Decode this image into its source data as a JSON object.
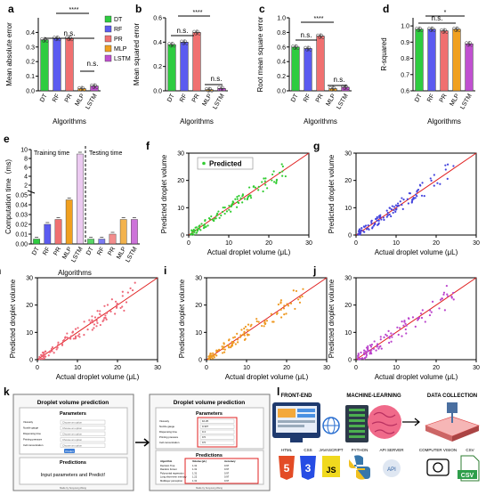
{
  "colors": {
    "DT": "#2ecc40",
    "RF": "#5b5bf0",
    "PR": "#f07070",
    "MLP": "#f0a020",
    "LSTM": "#c050d0",
    "diag": "#e02020",
    "scatter_f": "#33cc33",
    "scatter_g": "#4444dd",
    "scatter_h": "#ee6677",
    "scatter_i": "#ee9922",
    "scatter_j": "#bb44cc"
  },
  "panels": {
    "a": {
      "label": "a",
      "ylabel": "Mean absolute error",
      "xlabel": "Algorithms",
      "sig1": "****",
      "ns1": "n.s.",
      "ns2": "n.s."
    },
    "b": {
      "label": "b",
      "ylabel": "Mean squared error",
      "xlabel": "Algorithms",
      "sig1": "****",
      "ns1": "n.s.",
      "ns2": "n.s."
    },
    "c": {
      "label": "c",
      "ylabel": "Root mean square error",
      "xlabel": "Algorithms",
      "sig1": "****",
      "ns1": "n.s.",
      "ns2": "n.s."
    },
    "d": {
      "label": "d",
      "ylabel": "R-squared",
      "xlabel": "Algorithms",
      "sig1": "*",
      "ns1": "n.s."
    },
    "e": {
      "label": "e",
      "ylabel": "Computation time（ms)",
      "xlabel": "Algorithms",
      "train": "Training time",
      "test": "Testing time"
    },
    "f": {
      "label": "f",
      "legend": "Predicted"
    },
    "g": {
      "label": "g"
    },
    "h": {
      "label": "h"
    },
    "i": {
      "label": "i"
    },
    "j": {
      "label": "j"
    },
    "k": {
      "label": "k"
    },
    "l": {
      "label": "l"
    }
  },
  "scatter_axes": {
    "xlabel": "Actual droplet volume (μL)",
    "ylabel": "Predicted droplet volume"
  },
  "chart_data": [
    {
      "id": "a",
      "type": "bar",
      "categories": [
        "DT",
        "RF",
        "PR",
        "MLP",
        "LSTM"
      ],
      "values": [
        0.35,
        0.36,
        0.36,
        0.015,
        0.033
      ],
      "ylim": [
        0,
        0.5
      ],
      "yticks": [
        0,
        0.1,
        0.2,
        0.3,
        0.4
      ],
      "legend": [
        "DT",
        "RF",
        "PR",
        "MLP",
        "LSTM"
      ]
    },
    {
      "id": "b",
      "type": "bar",
      "categories": [
        "DT",
        "RF",
        "PR",
        "MLP",
        "LSTM"
      ],
      "values": [
        0.38,
        0.4,
        0.48,
        0.01,
        0.02
      ],
      "ylim": [
        0,
        0.6
      ],
      "yticks": [
        0,
        0.2,
        0.4,
        0.6
      ]
    },
    {
      "id": "c",
      "type": "bar",
      "categories": [
        "DT",
        "RF",
        "PR",
        "MLP",
        "LSTM"
      ],
      "values": [
        0.6,
        0.58,
        0.75,
        0.03,
        0.05
      ],
      "ylim": [
        0,
        1.0
      ],
      "yticks": [
        0,
        0.2,
        0.4,
        0.6,
        0.8,
        1.0
      ]
    },
    {
      "id": "d",
      "type": "bar",
      "categories": [
        "DT",
        "RF",
        "PR",
        "MLP",
        "LSTM"
      ],
      "values": [
        0.98,
        0.98,
        0.97,
        0.98,
        0.89
      ],
      "ylim": [
        0.6,
        1.05
      ],
      "yticks": [
        0.6,
        0.7,
        0.8,
        0.9,
        1.0
      ]
    },
    {
      "id": "e",
      "type": "bar",
      "categories": [
        "DT",
        "RF",
        "PR",
        "MLP",
        "LSTM"
      ],
      "series": [
        {
          "name": "Training time",
          "values": [
            0.005,
            0.02,
            0.025,
            0.045,
            9.0
          ]
        },
        {
          "name": "Testing time",
          "values": [
            0.005,
            0.005,
            0.01,
            0.025,
            0.025
          ]
        }
      ],
      "yticks": [
        "0.00",
        "0.01",
        "0.02",
        "0.03",
        "0.04",
        "0.05",
        "2",
        "4",
        "6",
        "8",
        "10"
      ]
    },
    {
      "id": "f",
      "type": "scatter",
      "xlim": [
        0,
        30
      ],
      "ylim": [
        0,
        30
      ],
      "ticks": [
        0,
        10,
        20,
        30
      ]
    },
    {
      "id": "g",
      "type": "scatter",
      "xlim": [
        0,
        30
      ],
      "ylim": [
        0,
        30
      ],
      "ticks": [
        0,
        10,
        20,
        30
      ]
    },
    {
      "id": "h",
      "type": "scatter",
      "xlim": [
        0,
        30
      ],
      "ylim": [
        0,
        30
      ],
      "ticks": [
        0,
        10,
        20,
        30
      ]
    },
    {
      "id": "i",
      "type": "scatter",
      "xlim": [
        0,
        30
      ],
      "ylim": [
        0,
        30
      ],
      "ticks": [
        0,
        10,
        20,
        30
      ]
    },
    {
      "id": "j",
      "type": "scatter",
      "xlim": [
        0,
        30
      ],
      "ylim": [
        0,
        30
      ],
      "ticks": [
        0,
        10,
        20,
        30
      ]
    }
  ],
  "ui_k": {
    "title1": "Droplet volume prediction",
    "params": "Parameters",
    "preds": "Predictions",
    "msg": "Input parameters and Predict!",
    "btn": "Predict",
    "fields": [
      "Viscosity",
      "Nozzle gauge",
      "Dispensing time",
      "Printing pressure",
      "Cell concentration"
    ],
    "placeholder": "Choose an option",
    "values": [
      "10.25",
      "0.337",
      "0.4",
      "0.5",
      "0.5"
    ],
    "table_head": [
      "Algorithm",
      "Volume (μL)",
      "Accuracy"
    ],
    "table_rows": [
      [
        "Decision Tree",
        "1.31",
        "0.97"
      ],
      [
        "Random Forest",
        "1.31",
        "0.97"
      ],
      [
        "Polynomial regression",
        "1.31",
        "0.97"
      ],
      [
        "Long short-term memory",
        "1.22",
        "0.97"
      ],
      [
        "Multilayer perceptron",
        "1.31",
        "0.97"
      ]
    ],
    "footer": "Made by Sooyoung Wang"
  },
  "ui_l": {
    "front": "FRONT-END",
    "ml": "MACHINE-LEARNING",
    "dc": "DATA COLLECTION",
    "html": "HTML",
    "css": "CSS",
    "js": "JAVASCRIPT",
    "py": "PYTHON",
    "api": "API SERVER",
    "cv": "COMPUTER VISION",
    "csv": "CSV",
    "csvbadge": "CSV",
    "h5": "5",
    "c3": "3",
    "js_js": "JS",
    "api_badge": "API"
  }
}
